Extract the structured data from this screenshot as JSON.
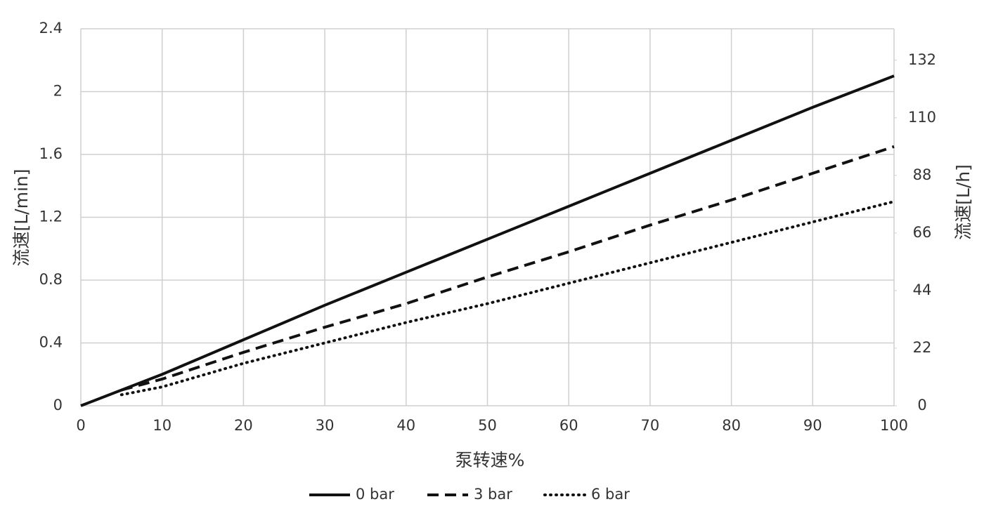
{
  "chart_data": {
    "type": "line",
    "x_label": "泵转速%",
    "y_label": "流速[L/min]",
    "y2_label": "流速[L/h]",
    "x": [
      0,
      5,
      10,
      20,
      30,
      40,
      50,
      60,
      70,
      80,
      90,
      100
    ],
    "series": [
      {
        "name": "0 bar",
        "color": "#111111",
        "line_style": "solid",
        "values": [
          0,
          0.1,
          0.2,
          0.42,
          0.64,
          0.85,
          1.06,
          1.27,
          1.48,
          1.69,
          1.9,
          2.1
        ]
      },
      {
        "name": "3 bar",
        "color": "#111111",
        "line_style": "dashed",
        "values": [
          null,
          0.1,
          0.17,
          0.34,
          0.5,
          0.65,
          0.82,
          0.98,
          1.15,
          1.31,
          1.48,
          1.65
        ]
      },
      {
        "name": "6 bar",
        "color": "#111111",
        "line_style": "dotted",
        "values": [
          null,
          0.07,
          0.12,
          0.27,
          0.4,
          0.53,
          0.65,
          0.78,
          0.91,
          1.04,
          1.17,
          1.3
        ]
      }
    ],
    "xlim": [
      0,
      100
    ],
    "xticks": [
      0,
      10,
      20,
      30,
      40,
      50,
      60,
      70,
      80,
      90,
      100
    ],
    "ylim": [
      0,
      2.4
    ],
    "yticks": [
      0,
      0.4,
      0.8,
      1.2,
      1.6,
      2,
      2.4
    ],
    "y2lim": [
      0,
      144
    ],
    "y2ticks": [
      0,
      22,
      44,
      66,
      88,
      110,
      132
    ],
    "grid": true,
    "legend": "bottom"
  }
}
